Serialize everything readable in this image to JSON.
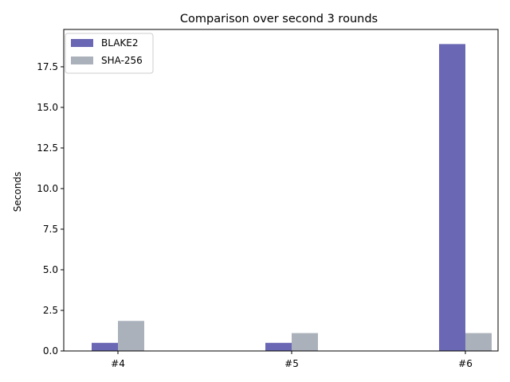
{
  "chart_data": {
    "type": "bar",
    "title": "Comparison over second 3 rounds",
    "xlabel": "",
    "ylabel": "Seconds",
    "categories": [
      "#4",
      "#5",
      "#6"
    ],
    "series": [
      {
        "name": "BLAKE2",
        "values": [
          0.5,
          0.5,
          18.9
        ],
        "color": "#6a67b4"
      },
      {
        "name": "SHA-256",
        "values": [
          1.85,
          1.1,
          1.1
        ],
        "color": "#aab1bb"
      }
    ],
    "ylim": [
      0,
      19.8
    ],
    "yticks": [
      "0.0",
      "2.5",
      "5.0",
      "7.5",
      "10.0",
      "12.5",
      "15.0",
      "17.5"
    ],
    "grid": false,
    "legend_position": "top-left"
  }
}
